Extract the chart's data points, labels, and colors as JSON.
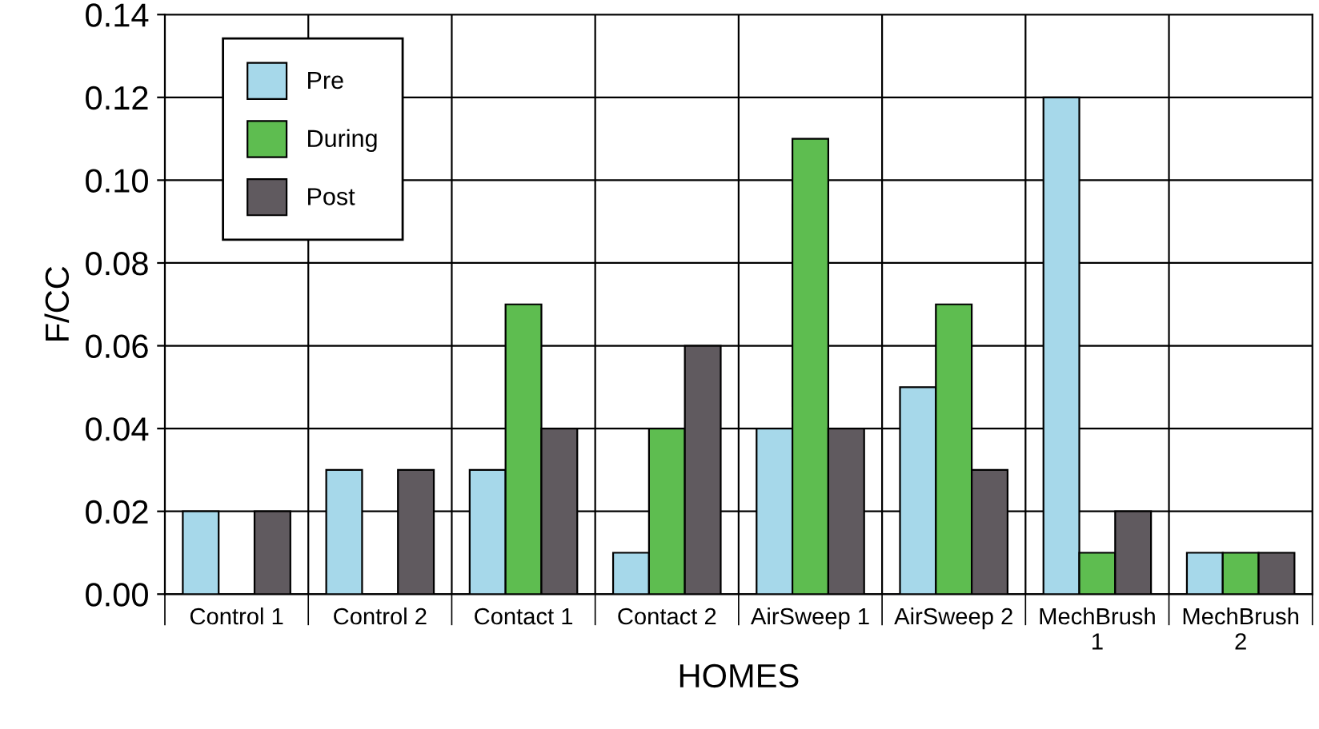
{
  "chart_data": {
    "type": "bar",
    "xlabel": "HOMES",
    "ylabel": "F/CC",
    "categories": [
      "Control 1",
      "Control 2",
      "Contact 1",
      "Contact 2",
      "AirSweep 1",
      "AirSweep 2",
      "MechBrush 1",
      "MechBrush 2"
    ],
    "series": [
      {
        "name": "Pre",
        "color": "#a6d8ea",
        "values": [
          0.02,
          0.03,
          0.03,
          0.01,
          0.04,
          0.05,
          0.12,
          0.01
        ]
      },
      {
        "name": "During",
        "color": "#5ebd50",
        "values": [
          null,
          null,
          0.07,
          0.04,
          0.11,
          0.07,
          0.01,
          0.01
        ]
      },
      {
        "name": "Post",
        "color": "#605a5f",
        "values": [
          0.02,
          0.03,
          0.04,
          0.06,
          0.04,
          0.03,
          0.02,
          0.01
        ]
      }
    ],
    "ylim": [
      0,
      0.14
    ],
    "yticks": [
      {
        "value": 0,
        "label": "0.00"
      },
      {
        "value": 0.02,
        "label": "0.02"
      },
      {
        "value": 0.04,
        "label": "0.04"
      },
      {
        "value": 0.06,
        "label": "0.06"
      },
      {
        "value": 0.08,
        "label": "0.08"
      },
      {
        "value": 0.1,
        "label": "0.10"
      },
      {
        "value": 0.12,
        "label": "0.12"
      },
      {
        "value": 0.14,
        "label": "0.14"
      }
    ],
    "grid": true,
    "legend": "top left"
  }
}
